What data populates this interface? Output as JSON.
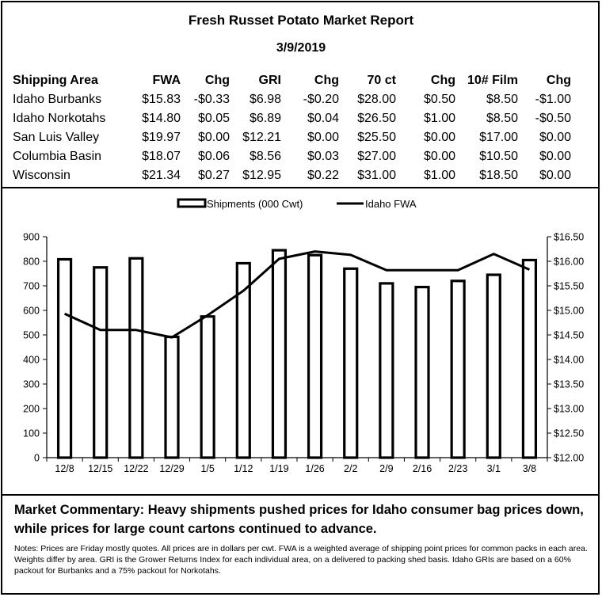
{
  "report": {
    "title": "Fresh Russet Potato Market Report",
    "date": "3/9/2019"
  },
  "table": {
    "headers": [
      "Shipping Area",
      "FWA",
      "Chg",
      "GRI",
      "Chg",
      "70 ct",
      "Chg",
      "10# Film",
      "Chg"
    ],
    "rows": [
      [
        "Idaho Burbanks",
        "$15.83",
        "-$0.33",
        "$6.98",
        "-$0.20",
        "$28.00",
        "$0.50",
        "$8.50",
        "-$1.00"
      ],
      [
        "Idaho Norkotahs",
        "$14.80",
        "$0.05",
        "$6.89",
        "$0.04",
        "$26.50",
        "$1.00",
        "$8.50",
        "-$0.50"
      ],
      [
        "San Luis Valley",
        "$19.97",
        "$0.00",
        "$12.21",
        "$0.00",
        "$25.50",
        "$0.00",
        "$17.00",
        "$0.00"
      ],
      [
        "Columbia Basin",
        "$18.07",
        "$0.06",
        "$8.56",
        "$0.03",
        "$27.00",
        "$0.00",
        "$10.50",
        "$0.00"
      ],
      [
        "Wisconsin",
        "$21.34",
        "$0.27",
        "$12.95",
        "$0.22",
        "$31.00",
        "$1.00",
        "$18.50",
        "$0.00"
      ]
    ]
  },
  "chart_data": {
    "type": "bar",
    "categories": [
      "12/8",
      "12/15",
      "12/22",
      "12/29",
      "1/5",
      "1/12",
      "1/19",
      "1/26",
      "2/2",
      "2/9",
      "2/16",
      "2/23",
      "3/1",
      "3/8"
    ],
    "series": [
      {
        "name": "Shipments (000 Cwt)",
        "type": "bar",
        "axis": "left",
        "values": [
          808,
          775,
          812,
          492,
          575,
          792,
          845,
          825,
          770,
          710,
          695,
          720,
          745,
          805
        ]
      },
      {
        "name": "Idaho FWA",
        "type": "line",
        "axis": "right",
        "values": [
          14.93,
          14.6,
          14.6,
          14.45,
          14.9,
          15.4,
          16.05,
          16.2,
          16.13,
          15.82,
          15.82,
          15.82,
          16.15,
          15.83
        ]
      }
    ],
    "y_left": {
      "min": 0,
      "max": 900,
      "ticks": [
        "0",
        "100",
        "200",
        "300",
        "400",
        "500",
        "600",
        "700",
        "800",
        "900"
      ]
    },
    "y_right": {
      "min": 12,
      "max": 16.5,
      "ticks": [
        "$12.00",
        "$12.50",
        "$13.00",
        "$13.50",
        "$14.00",
        "$14.50",
        "$15.00",
        "$15.50",
        "$16.00",
        "$16.50"
      ]
    },
    "legend_position": "top-center",
    "grid": false
  },
  "commentary": "Market Commentary: Heavy shipments pushed prices for Idaho consumer bag prices down, while prices for large count cartons continued to advance.",
  "notes": "Notes: Prices are Friday mostly quotes. All prices are in dollars per cwt. FWA is a weighted average of shipping point prices for common packs in each area. Weights differ by area. GRI is the Grower Returns Index for each individual area, on a delivered to packing shed basis. Idaho GRIs are based on a 60% packout for Burbanks and a 75% packout for Norkotahs."
}
